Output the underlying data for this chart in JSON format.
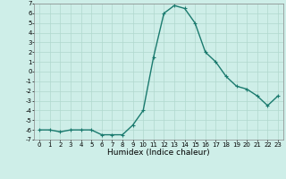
{
  "x": [
    0,
    1,
    2,
    3,
    4,
    5,
    6,
    7,
    8,
    9,
    10,
    11,
    12,
    13,
    14,
    15,
    16,
    17,
    18,
    19,
    20,
    21,
    22,
    23
  ],
  "y": [
    -6,
    -6,
    -6.2,
    -6,
    -6,
    -6,
    -6.5,
    -6.5,
    -6.5,
    -5.5,
    -4,
    1.5,
    6,
    6.8,
    6.5,
    5,
    2,
    1,
    -0.5,
    -1.5,
    -1.8,
    -2.5,
    -3.5,
    -2.5
  ],
  "line_color": "#1a7a6e",
  "marker": "+",
  "marker_size": 3,
  "background_color": "#ceeee8",
  "grid_color": "#b0d8ce",
  "xlabel": "Humidex (Indice chaleur)",
  "ylim": [
    -7,
    7
  ],
  "xlim": [
    -0.5,
    23.5
  ],
  "xticks": [
    0,
    1,
    2,
    3,
    4,
    5,
    6,
    7,
    8,
    9,
    10,
    11,
    12,
    13,
    14,
    15,
    16,
    17,
    18,
    19,
    20,
    21,
    22,
    23
  ],
  "yticks": [
    -7,
    -6,
    -5,
    -4,
    -3,
    -2,
    -1,
    0,
    1,
    2,
    3,
    4,
    5,
    6,
    7
  ],
  "tick_fontsize": 5,
  "xlabel_fontsize": 6.5,
  "line_width": 1.0
}
